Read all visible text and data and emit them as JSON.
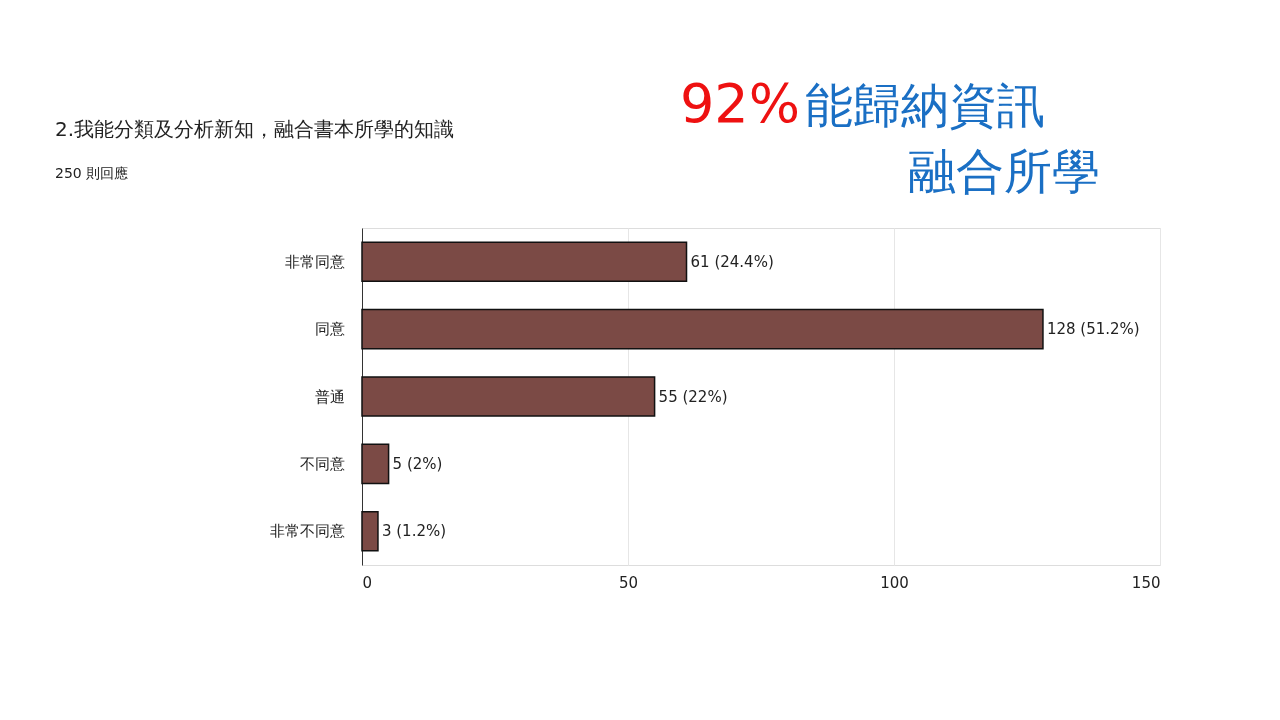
{
  "chart_data": {
    "type": "bar",
    "orientation": "horizontal",
    "title": "2.我能分類及分析新知，融合書本所學的知識",
    "subtitle": "250 則回應",
    "categories": [
      "非常同意",
      "同意",
      "普通",
      "不同意",
      "非常不同意"
    ],
    "values": [
      61,
      128,
      55,
      5,
      3
    ],
    "value_labels": [
      "61 (24.4%)",
      "128 (51.2%)",
      "55 (22%)",
      "5 (2%)",
      "3 (1.2%)"
    ],
    "color": "#7b4a45",
    "xlim": [
      0,
      150
    ],
    "xticks": [
      0,
      50,
      100,
      150
    ],
    "grid": "x",
    "annotations": [
      "92%能歸納資訊",
      "融合所學"
    ]
  }
}
